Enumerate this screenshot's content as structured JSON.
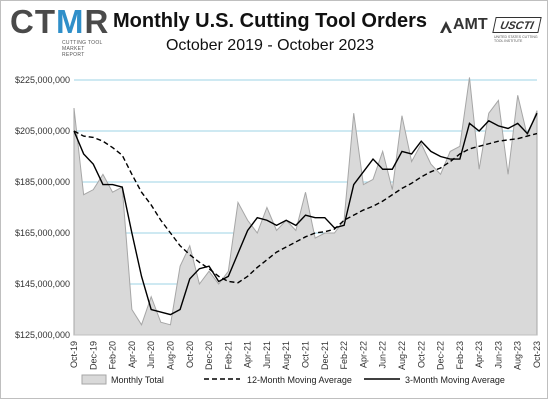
{
  "logo_left": {
    "big_pre": "CT",
    "big_accent": "M",
    "big_post": "R",
    "small": "CUTTING TOOL MARKET REPORT"
  },
  "logo_right": {
    "amt": "AMT",
    "uscti": "USCTI",
    "uscti_sub": "UNITED STATES CUTTING TOOL INSTITUTE"
  },
  "colors": {
    "area_fill": "#d9d9d9",
    "area_stroke": "#a6a6a6",
    "grid": "#9dd3e6",
    "line": "#000000",
    "accent": "#2f8fc9"
  },
  "chart_data": {
    "type": "area",
    "title": "Monthly U.S. Cutting Tool Orders",
    "subtitle": "October 2019 - October 2023",
    "xlabel": "",
    "ylabel": "",
    "ylim": [
      125000000,
      225000000
    ],
    "y_ticks": [
      "$125,000,000",
      "$145,000,000",
      "$165,000,000",
      "$185,000,000",
      "$205,000,000",
      "$225,000,000"
    ],
    "y_tick_values": [
      125000000,
      145000000,
      165000000,
      185000000,
      205000000,
      225000000
    ],
    "x": [
      "Oct-19",
      "Nov-19",
      "Dec-19",
      "Jan-20",
      "Feb-20",
      "Mar-20",
      "Apr-20",
      "May-20",
      "Jun-20",
      "Jul-20",
      "Aug-20",
      "Sep-20",
      "Oct-20",
      "Nov-20",
      "Dec-20",
      "Jan-21",
      "Feb-21",
      "Mar-21",
      "Apr-21",
      "May-21",
      "Jun-21",
      "Jul-21",
      "Aug-21",
      "Sep-21",
      "Oct-21",
      "Nov-21",
      "Dec-21",
      "Jan-22",
      "Feb-22",
      "Mar-22",
      "Apr-22",
      "May-22",
      "Jun-22",
      "Jul-22",
      "Aug-22",
      "Sep-22",
      "Oct-22",
      "Nov-22",
      "Dec-22",
      "Jan-23",
      "Feb-23",
      "Mar-23",
      "Apr-23",
      "May-23",
      "Jun-23",
      "Jul-23",
      "Aug-23",
      "Sep-23",
      "Oct-23"
    ],
    "x_tick_labels": [
      "Oct-19",
      "Dec-19",
      "Feb-20",
      "Apr-20",
      "Jun-20",
      "Aug-20",
      "Oct-20",
      "Dec-20",
      "Feb-21",
      "Apr-21",
      "Jun-21",
      "Aug-21",
      "Oct-21",
      "Dec-21",
      "Feb-22",
      "Apr-22",
      "Jun-22",
      "Aug-22",
      "Oct-22",
      "Dec-22",
      "Feb-23",
      "Apr-23",
      "Jun-23",
      "Aug-23",
      "Oct-23"
    ],
    "series": [
      {
        "name": "Monthly Total",
        "kind": "area",
        "values": [
          214000000,
          180000000,
          182000000,
          188000000,
          181000000,
          183000000,
          135000000,
          129000000,
          140000000,
          130000000,
          129000000,
          152000000,
          160000000,
          145000000,
          150000000,
          145000000,
          150000000,
          177000000,
          170000000,
          165000000,
          175000000,
          166000000,
          170000000,
          166000000,
          181000000,
          163000000,
          165000000,
          165000000,
          170000000,
          212000000,
          184000000,
          186000000,
          197000000,
          182000000,
          211000000,
          193000000,
          200000000,
          192000000,
          188000000,
          197000000,
          199000000,
          226000000,
          190000000,
          212000000,
          217000000,
          188000000,
          219000000,
          203000000,
          213000000
        ]
      },
      {
        "name": "12-Month Moving Average",
        "kind": "dashed",
        "values": [
          205000000,
          203000000,
          202500000,
          201000000,
          198500000,
          195500000,
          188000000,
          181000000,
          176000000,
          170000000,
          165000000,
          160000000,
          156500000,
          153500000,
          151000000,
          148000000,
          146000000,
          145500000,
          148000000,
          151500000,
          154500000,
          157500000,
          159500000,
          161500000,
          163500000,
          165000000,
          165500000,
          166500000,
          170000000,
          172000000,
          174000000,
          175500000,
          177500000,
          180000000,
          182500000,
          184500000,
          187000000,
          189000000,
          190500000,
          193000000,
          196000000,
          198000000,
          199000000,
          200000000,
          201000000,
          201500000,
          202000000,
          203000000,
          204000000
        ]
      },
      {
        "name": "3-Month Moving Average",
        "kind": "solid",
        "values": [
          205000000,
          196000000,
          192000000,
          184000000,
          184000000,
          183000000,
          165000000,
          148000000,
          135000000,
          134000000,
          133000000,
          135000000,
          147000000,
          151000000,
          152000000,
          146000000,
          148000000,
          157000000,
          166000000,
          171000000,
          170000000,
          168000000,
          170000000,
          168000000,
          172000000,
          171000000,
          171000000,
          167000000,
          168000000,
          184000000,
          189000000,
          194000000,
          190000000,
          190000000,
          197000000,
          196000000,
          201000000,
          197000000,
          195000000,
          194000000,
          194000000,
          208000000,
          205000000,
          209000000,
          207000000,
          206000000,
          208000000,
          204000000,
          212000000
        ]
      }
    ]
  }
}
